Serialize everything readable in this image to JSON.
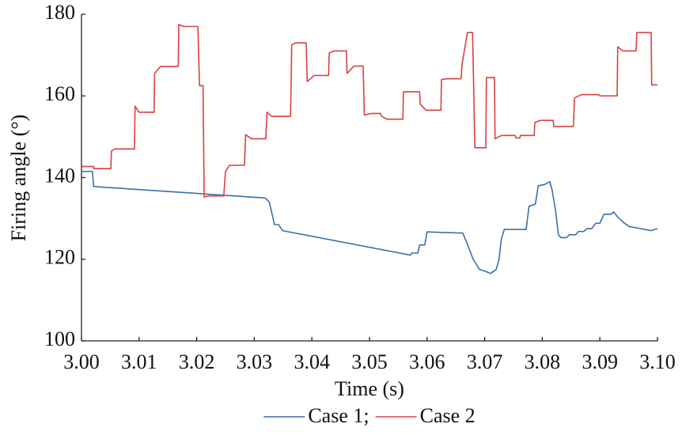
{
  "chart_data": {
    "type": "line",
    "xlabel": "Time (s)",
    "ylabel": "Firing angle (°)",
    "xlim": [
      3.0,
      3.1
    ],
    "xticks": [
      {
        "value": 3.0,
        "label": "3.00"
      },
      3.01,
      3.02,
      3.03,
      3.04,
      3.05,
      3.06,
      3.07,
      3.08,
      3.09,
      {
        "value": 3.1,
        "label": "3.10"
      }
    ],
    "ylim": [
      100,
      180
    ],
    "yticks": [
      100,
      120,
      140,
      160,
      180
    ],
    "grid": false,
    "legend": "bottom",
    "series": [
      {
        "name": "Case 1;",
        "color": "#3a6fa8",
        "x": [
          3.0,
          3.0019,
          3.0021,
          3.0319,
          3.0326,
          3.0335,
          3.0342,
          3.0349,
          3.0571,
          3.0573,
          3.0584,
          3.0587,
          3.0596,
          3.06,
          3.0618,
          3.0662,
          3.0669,
          3.068,
          3.0691,
          3.0702,
          3.071,
          3.072,
          3.0725,
          3.0729,
          3.0734,
          3.0772,
          3.0777,
          3.0788,
          3.0793,
          3.0804,
          3.0813,
          3.0817,
          3.0823,
          3.0828,
          3.0832,
          3.0842,
          3.0847,
          3.0858,
          3.0863,
          3.0872,
          3.0878,
          3.0886,
          3.0893,
          3.09,
          3.0907,
          3.0919,
          3.0924,
          3.093,
          3.0941,
          3.0951,
          3.0963,
          3.0978,
          3.0989,
          3.1
        ],
        "values": [
          141.5,
          141.5,
          137.8,
          135,
          134,
          128.5,
          128.5,
          127,
          121,
          121.5,
          121.5,
          123.5,
          123.5,
          126.7,
          126.6,
          126.4,
          124,
          120,
          117.5,
          117,
          116.5,
          117.5,
          120,
          125,
          127.3,
          127.3,
          133,
          133.5,
          138,
          138.3,
          139,
          137,
          132,
          126,
          125.3,
          125.3,
          126,
          126,
          126.8,
          126.8,
          127.5,
          127.5,
          128.8,
          128.8,
          131,
          131,
          131.6,
          130.5,
          129,
          128,
          127.7,
          127.3,
          127,
          127.5
        ]
      },
      {
        "name": "Case 2",
        "color": "#d9413f",
        "x": [
          3.0,
          3.0021,
          3.0021,
          3.0051,
          3.0052,
          3.0058,
          3.0092,
          3.0093,
          3.01,
          3.0126,
          3.0127,
          3.0137,
          3.0168,
          3.0169,
          3.0177,
          3.0202,
          3.0205,
          3.0211,
          3.0213,
          3.022,
          3.0247,
          3.025,
          3.0257,
          3.0283,
          3.0285,
          3.0295,
          3.032,
          3.0322,
          3.033,
          3.0363,
          3.0365,
          3.0372,
          3.039,
          3.0392,
          3.0404,
          3.0429,
          3.043,
          3.0438,
          3.046,
          3.0461,
          3.0473,
          3.0489,
          3.0491,
          3.0503,
          3.0519,
          3.0521,
          3.053,
          3.0558,
          3.0559,
          3.0587,
          3.0588,
          3.0598,
          3.0624,
          3.0625,
          3.0635,
          3.0659,
          3.0661,
          3.067,
          3.0679,
          3.0683,
          3.0702,
          3.0703,
          3.0717,
          3.0718,
          3.0729,
          3.0753,
          3.0754,
          3.0761,
          3.0762,
          3.0786,
          3.0787,
          3.0797,
          3.0819,
          3.082,
          3.0854,
          3.0856,
          3.0868,
          3.0898,
          3.09,
          3.093,
          3.0931,
          3.094,
          3.0963,
          3.0964,
          3.0989,
          3.099,
          3.1
        ],
        "values": [
          142.7,
          142.7,
          142.2,
          142.2,
          146.5,
          147,
          147,
          157.5,
          156,
          156,
          165.5,
          167.2,
          167.2,
          177.5,
          177,
          177,
          162.5,
          162.5,
          135.2,
          135.5,
          135.5,
          141.5,
          143,
          143,
          150.5,
          149.5,
          149.5,
          156,
          155,
          155,
          172.5,
          173,
          173,
          163.5,
          165,
          165,
          170.5,
          171,
          171,
          165.5,
          167.3,
          167.3,
          155.3,
          155.7,
          155.7,
          155,
          154.3,
          154.3,
          161,
          161,
          158,
          156.5,
          156.5,
          164,
          164.2,
          164.2,
          168,
          175.5,
          175.5,
          147.3,
          147.3,
          164.5,
          164.5,
          149.5,
          150.3,
          150.3,
          149.7,
          149.7,
          150.3,
          150.3,
          153.5,
          154,
          154,
          152.5,
          152.5,
          159.5,
          160.3,
          160.3,
          160,
          160,
          172,
          171,
          171,
          175.5,
          175.5,
          162.7,
          162.7
        ]
      }
    ]
  }
}
